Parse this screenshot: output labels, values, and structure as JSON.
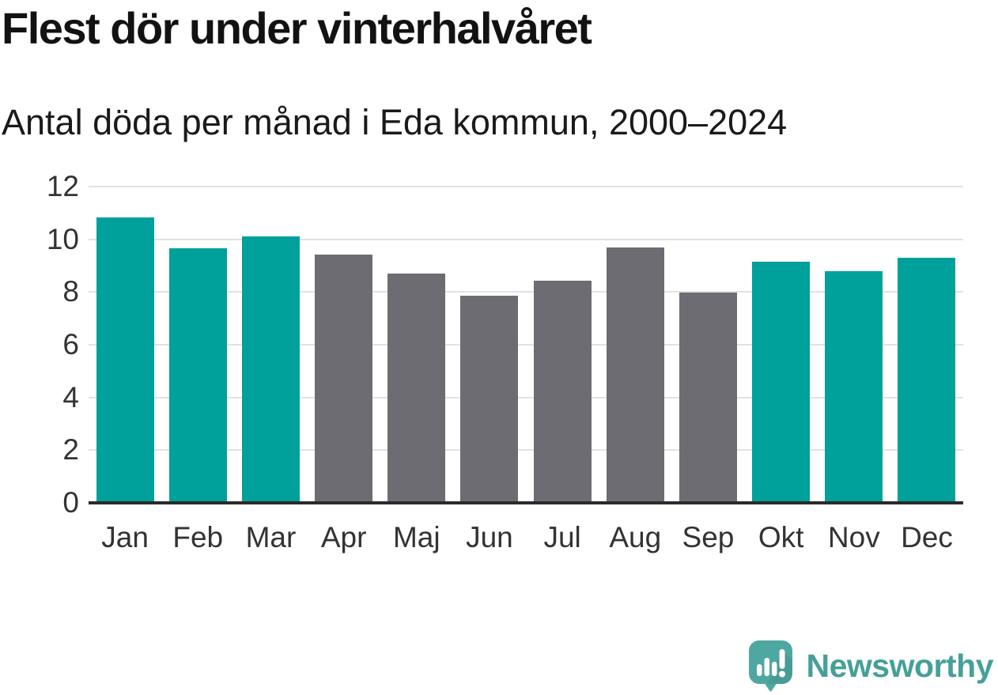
{
  "title": "Flest dör under vinterhalvåret",
  "subtitle": "Antal döda per månad i Eda kommun, 2000–2024",
  "logo": {
    "name": "Newsworthy",
    "icon": "newsworthy-speech-bubble-bar-chart-icon",
    "icon_color": "#4FA7A1",
    "text_color": "#46A099"
  },
  "chart_data": {
    "type": "bar",
    "title": "Flest dör under vinterhalvåret",
    "subtitle": "Antal döda per månad i Eda kommun, 2000–2024",
    "categories": [
      "Jan",
      "Feb",
      "Mar",
      "Apr",
      "Maj",
      "Jun",
      "Jul",
      "Aug",
      "Sep",
      "Okt",
      "Nov",
      "Dec"
    ],
    "values": [
      10.84,
      9.66,
      10.11,
      9.43,
      8.7,
      7.87,
      8.43,
      9.68,
      7.98,
      9.16,
      8.78,
      9.3
    ],
    "bar_color_keys": [
      "winter",
      "winter",
      "winter",
      "summer",
      "summer",
      "summer",
      "summer",
      "summer",
      "summer",
      "winter",
      "winter",
      "winter"
    ],
    "colors": {
      "winter": "#00A09B",
      "summer": "#6D6C72"
    },
    "xlabel": "",
    "ylabel": "",
    "ylim": [
      0,
      12
    ],
    "yticks": [
      0,
      2,
      4,
      6,
      8,
      10,
      12
    ],
    "grid": "horizontal",
    "gridline_color": "#E2E2E2",
    "axis_line_color": "#2B2B2B",
    "tick_label_color": "#333333",
    "legend": "none"
  }
}
